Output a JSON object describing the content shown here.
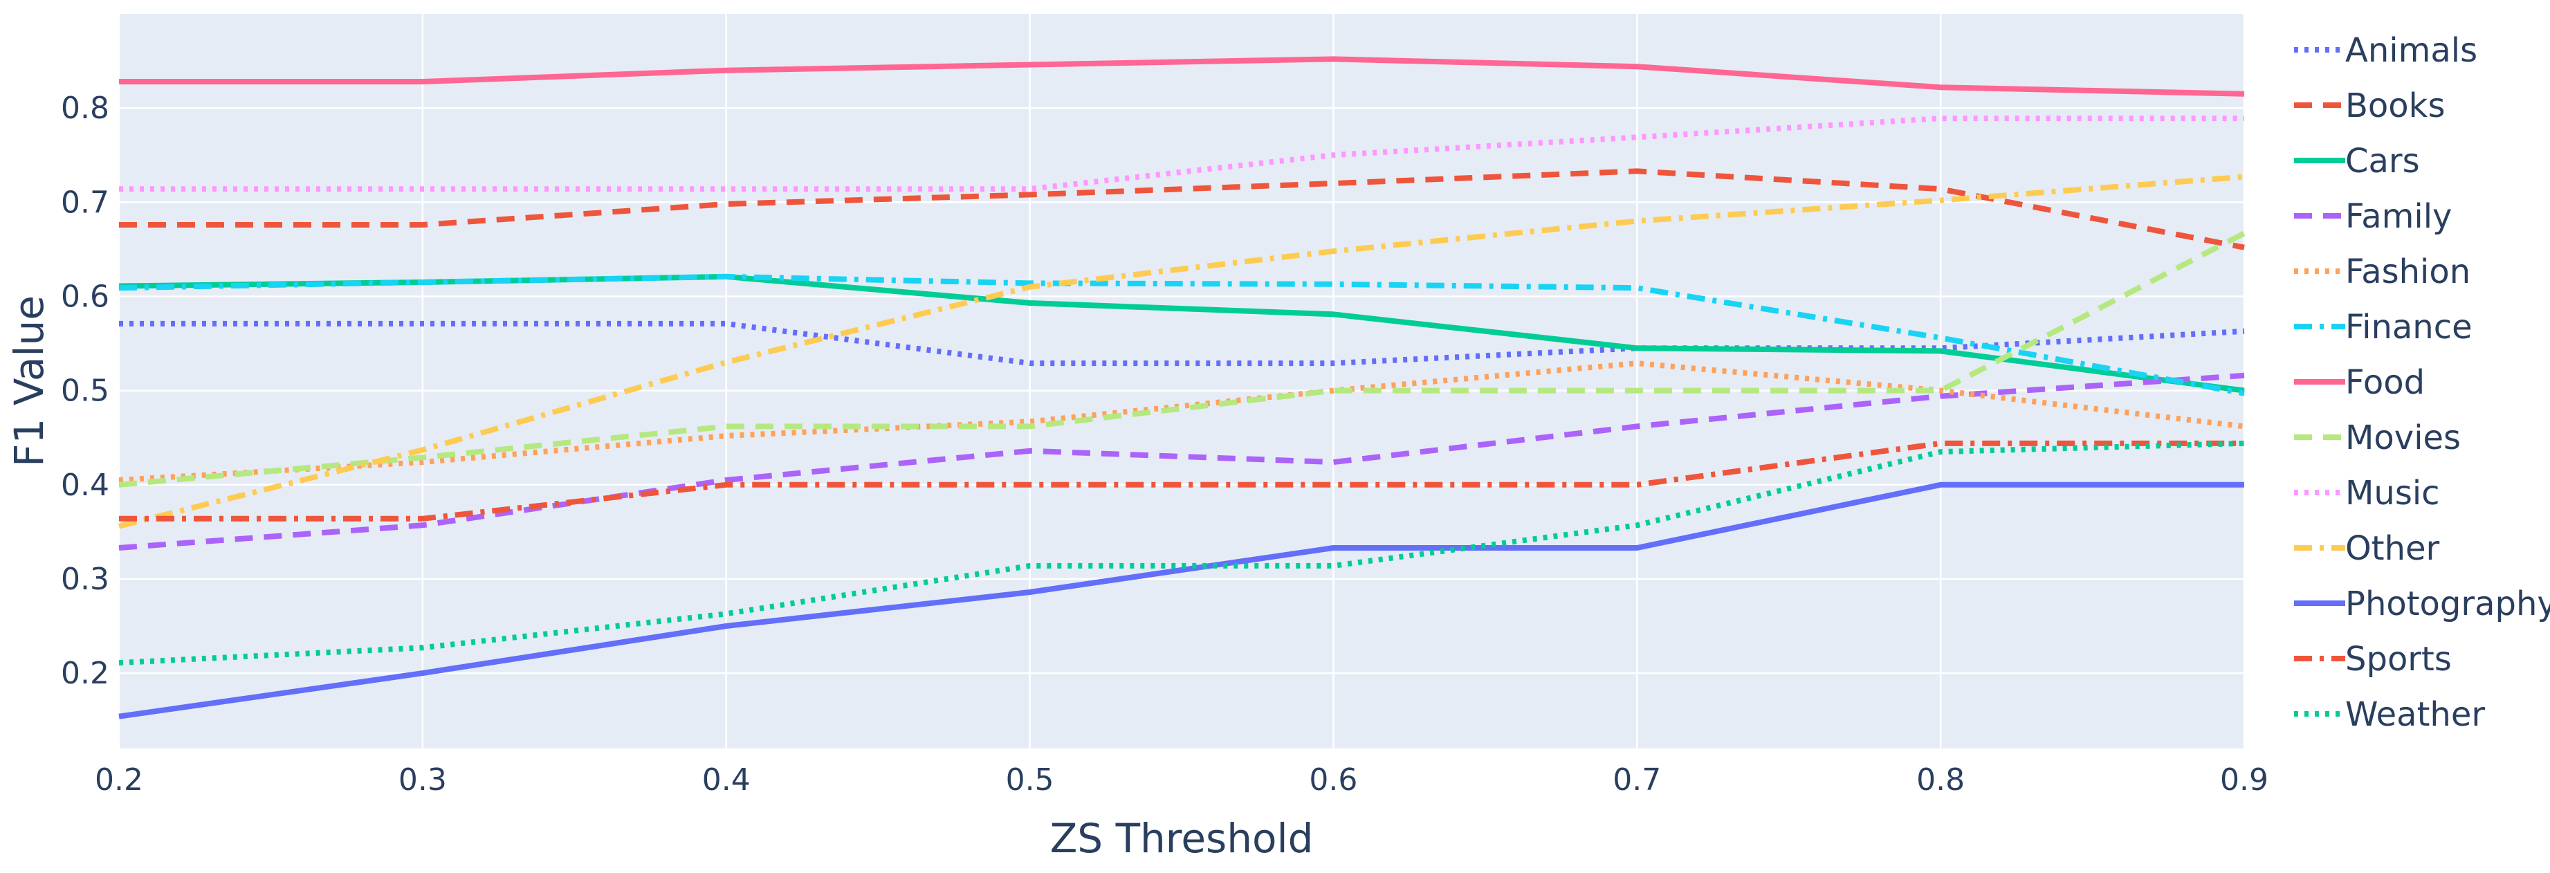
{
  "chart_data": {
    "type": "line",
    "title": "",
    "xlabel": "ZS Threshold",
    "ylabel": "F1 Value",
    "xlim": [
      0.2,
      0.9
    ],
    "ylim": [
      0.12,
      0.9
    ],
    "x": [
      0.2,
      0.3,
      0.4,
      0.5,
      0.6,
      0.7,
      0.8,
      0.9
    ],
    "x_tick_labels": [
      "0.2",
      "0.3",
      "0.4",
      "0.5",
      "0.6",
      "0.7",
      "0.8",
      "0.9"
    ],
    "y_ticks": [
      0.2,
      0.3,
      0.4,
      0.5,
      0.6,
      0.7,
      0.8
    ],
    "y_tick_labels": [
      "0.2",
      "0.3",
      "0.4",
      "0.5",
      "0.6",
      "0.7",
      "0.8"
    ],
    "grid": true,
    "background": "#e5ecf6",
    "legend_position": "right",
    "series": [
      {
        "name": "Animals",
        "color": "#636efa",
        "dash": "dot",
        "values": [
          0.571,
          0.571,
          0.571,
          0.529,
          0.529,
          0.545,
          0.545,
          0.563
        ]
      },
      {
        "name": "Books",
        "color": "#ef553b",
        "dash": "dash",
        "values": [
          0.676,
          0.676,
          0.698,
          0.708,
          0.72,
          0.733,
          0.714,
          0.652
        ]
      },
      {
        "name": "Cars",
        "color": "#00cc96",
        "dash": "solid",
        "values": [
          0.611,
          0.615,
          0.621,
          0.593,
          0.581,
          0.545,
          0.542,
          0.5
        ]
      },
      {
        "name": "Family",
        "color": "#ab63fa",
        "dash": "dash",
        "values": [
          0.333,
          0.357,
          0.405,
          0.436,
          0.424,
          0.462,
          0.494,
          0.516
        ]
      },
      {
        "name": "Fashion",
        "color": "#ffa15a",
        "dash": "dot",
        "values": [
          0.405,
          0.424,
          0.452,
          0.467,
          0.5,
          0.529,
          0.5,
          0.462
        ]
      },
      {
        "name": "Finance",
        "color": "#19d3f3",
        "dash": "dashdot",
        "values": [
          0.609,
          0.615,
          0.621,
          0.614,
          0.613,
          0.609,
          0.556,
          0.497
        ]
      },
      {
        "name": "Food",
        "color": "#ff6692",
        "dash": "solid",
        "values": [
          0.828,
          0.828,
          0.84,
          0.846,
          0.852,
          0.844,
          0.822,
          0.815
        ]
      },
      {
        "name": "Movies",
        "color": "#b6e880",
        "dash": "dash",
        "values": [
          0.4,
          0.429,
          0.462,
          0.462,
          0.5,
          0.5,
          0.5,
          0.667
        ]
      },
      {
        "name": "Music",
        "color": "#ff97ff",
        "dash": "dot",
        "values": [
          0.714,
          0.714,
          0.714,
          0.714,
          0.75,
          0.769,
          0.789,
          0.789
        ]
      },
      {
        "name": "Other",
        "color": "#fecb52",
        "dash": "dashdot",
        "values": [
          0.356,
          0.437,
          0.53,
          0.61,
          0.648,
          0.68,
          0.702,
          0.727
        ]
      },
      {
        "name": "Photography",
        "color": "#636efa",
        "dash": "solid",
        "values": [
          0.154,
          0.2,
          0.25,
          0.286,
          0.333,
          0.333,
          0.4,
          0.4
        ]
      },
      {
        "name": "Sports",
        "color": "#ef553b",
        "dash": "dashdot",
        "values": [
          0.364,
          0.364,
          0.4,
          0.4,
          0.4,
          0.4,
          0.444,
          0.444
        ]
      },
      {
        "name": "Weather",
        "color": "#00cc96",
        "dash": "dot",
        "values": [
          0.211,
          0.227,
          0.263,
          0.314,
          0.314,
          0.357,
          0.435,
          0.444
        ]
      }
    ]
  }
}
